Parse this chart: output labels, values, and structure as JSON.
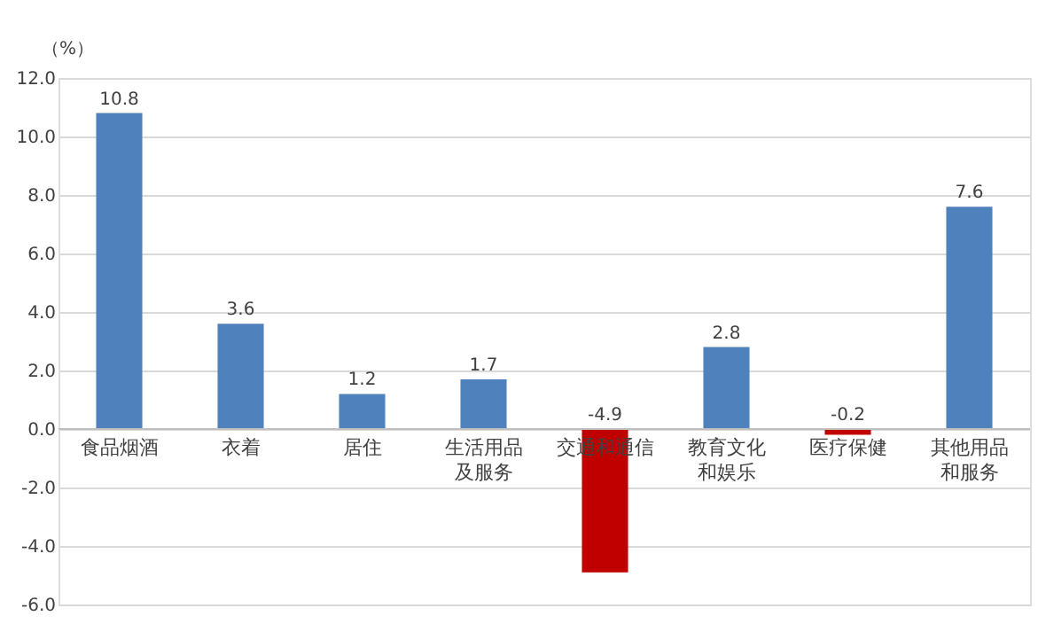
{
  "chart_data": {
    "type": "bar",
    "ylabel": "（%）",
    "categories": [
      "食品烟酒",
      "衣着",
      "居住",
      "生活用品及服务",
      "交通和通信",
      "教育文化和娱乐",
      "医疗保健",
      "其他用品和服务"
    ],
    "values": [
      10.8,
      3.6,
      1.2,
      1.7,
      -4.9,
      2.8,
      -0.2,
      7.6
    ],
    "colors": [
      "#4f81bd",
      "#4f81bd",
      "#4f81bd",
      "#4f81bd",
      "#c00000",
      "#4f81bd",
      "#c00000",
      "#4f81bd"
    ],
    "ylim": [
      -6,
      12
    ],
    "yticks": [
      {
        "value": -6,
        "label": "-6.0"
      },
      {
        "value": -4,
        "label": "-4.0"
      },
      {
        "value": -2,
        "label": "-2.0"
      },
      {
        "value": 0,
        "label": "0.0"
      },
      {
        "value": 2,
        "label": "2.0"
      },
      {
        "value": 4,
        "label": "4.0"
      },
      {
        "value": 6,
        "label": "6.0"
      },
      {
        "value": 8,
        "label": "8.0"
      },
      {
        "value": 10,
        "label": "10.0"
      },
      {
        "value": 12,
        "label": "12.0"
      }
    ],
    "grid": "y",
    "data_labels": true
  }
}
